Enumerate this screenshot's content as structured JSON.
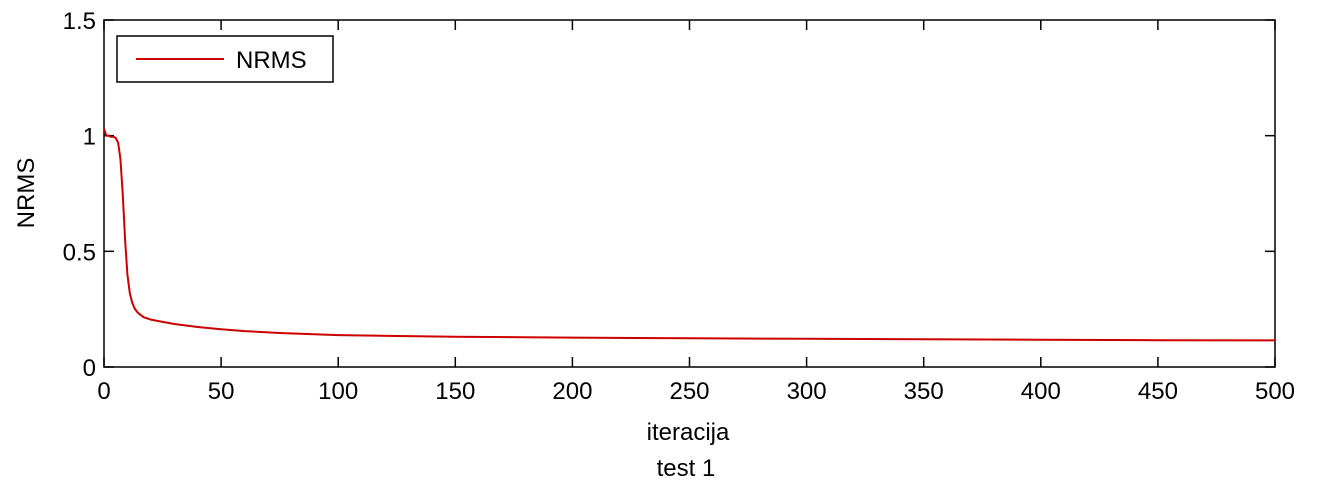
{
  "chart_data": {
    "type": "line",
    "xlabel": "iteracija",
    "ylabel": "NRMS",
    "xlim": [
      0,
      500
    ],
    "ylim": [
      0,
      1.5
    ],
    "x_ticks": [
      0,
      50,
      100,
      150,
      200,
      250,
      300,
      350,
      400,
      450,
      500
    ],
    "y_ticks": [
      0,
      0.5,
      1,
      1.5
    ],
    "x_tick_labels": [
      "0",
      "50",
      "100",
      "150",
      "200",
      "250",
      "300",
      "350",
      "400",
      "450",
      "500"
    ],
    "y_tick_labels": [
      "0",
      "0.5",
      "1",
      "1.5"
    ],
    "grid": false,
    "legend": {
      "position": "top-left",
      "entries": [
        "NRMS"
      ]
    },
    "series": [
      {
        "name": "NRMS",
        "color": "#cc0000",
        "x": [
          0,
          1,
          2,
          3,
          4,
          5,
          6,
          7,
          8,
          9,
          10,
          11,
          12,
          13,
          14,
          15,
          17,
          20,
          25,
          30,
          40,
          50,
          60,
          75,
          100,
          125,
          150,
          200,
          250,
          300,
          350,
          400,
          450,
          500
        ],
        "y": [
          1.03,
          1.0,
          1.0,
          0.995,
          0.995,
          0.99,
          0.97,
          0.9,
          0.75,
          0.55,
          0.4,
          0.32,
          0.28,
          0.255,
          0.24,
          0.23,
          0.215,
          0.205,
          0.195,
          0.186,
          0.173,
          0.163,
          0.155,
          0.147,
          0.138,
          0.134,
          0.131,
          0.127,
          0.124,
          0.122,
          0.12,
          0.118,
          0.116,
          0.115
        ]
      }
    ]
  },
  "caption": "test 1"
}
